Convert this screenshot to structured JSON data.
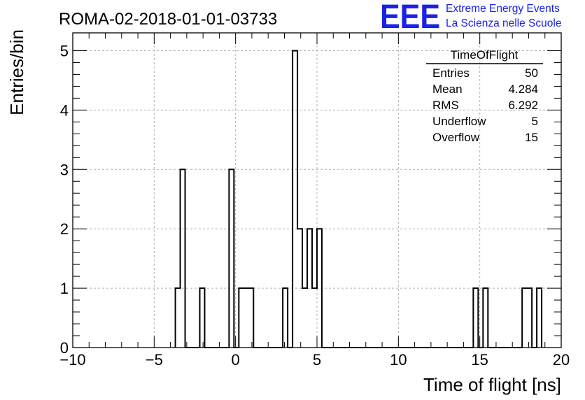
{
  "colors": {
    "logo": "#1a22e6",
    "grid": "#b0b0b0",
    "line": "#000000"
  },
  "header": {
    "run_title": "ROMA-02-2018-01-01-03733",
    "logo_text": "EEE",
    "logo_line1": "Extreme Energy Events",
    "logo_line2": "La Scienza nelle Scuole"
  },
  "stats": {
    "title": "TimeOfFlight",
    "rows": [
      {
        "label": "Entries",
        "value": "50"
      },
      {
        "label": "Mean",
        "value": "4.284"
      },
      {
        "label": "RMS",
        "value": "6.292"
      },
      {
        "label": "Underflow",
        "value": "5"
      },
      {
        "label": "Overflow",
        "value": "15"
      }
    ]
  },
  "chart_data": {
    "type": "histogram",
    "title": "",
    "xlabel": "Time of flight [ns]",
    "ylabel": "Entries/bin",
    "xlim": [
      -10,
      20
    ],
    "ylim": [
      0,
      5.3
    ],
    "grid": true,
    "bin_width": 0.3,
    "x_ticks": [
      -10,
      -5,
      0,
      5,
      10,
      15,
      20
    ],
    "x_tick_labels": [
      "−10",
      "−5",
      "0",
      "5",
      "10",
      "15",
      "20"
    ],
    "y_ticks": [
      0,
      1,
      2,
      3,
      4,
      5
    ],
    "y_tick_labels": [
      "0",
      "1",
      "2",
      "3",
      "4",
      "5"
    ],
    "bins": [
      {
        "x": -3.7,
        "value": 1
      },
      {
        "x": -3.4,
        "value": 3
      },
      {
        "x": -2.2,
        "value": 1
      },
      {
        "x": -0.4,
        "value": 3
      },
      {
        "x": 0.2,
        "value": 1
      },
      {
        "x": 0.5,
        "value": 1
      },
      {
        "x": 0.8,
        "value": 1
      },
      {
        "x": 2.9,
        "value": 1
      },
      {
        "x": 3.5,
        "value": 5
      },
      {
        "x": 3.8,
        "value": 2
      },
      {
        "x": 4.1,
        "value": 1
      },
      {
        "x": 4.4,
        "value": 2
      },
      {
        "x": 4.7,
        "value": 1
      },
      {
        "x": 5.0,
        "value": 2
      },
      {
        "x": 14.6,
        "value": 1
      },
      {
        "x": 15.2,
        "value": 1
      },
      {
        "x": 17.6,
        "value": 1
      },
      {
        "x": 17.9,
        "value": 1
      },
      {
        "x": 18.5,
        "value": 1
      }
    ]
  }
}
